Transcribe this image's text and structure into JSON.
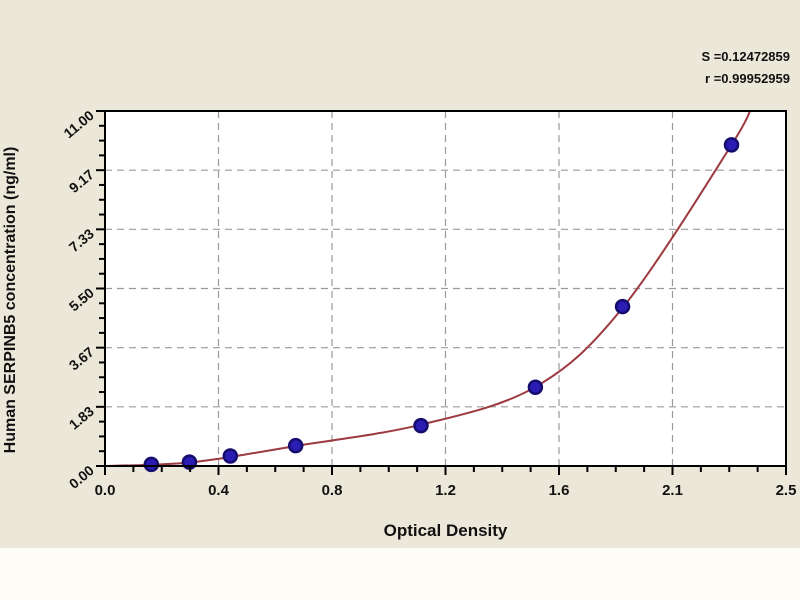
{
  "window": {
    "main_bg": "#ece8d9",
    "bottom_strip_bg": "#fdfdf6",
    "plot_bg": "#ffffff",
    "plot_border_color": "#000000",
    "grid_color": "#9a9a9a",
    "text_color": "#111111"
  },
  "stats": {
    "s_line": "S =0.12472859",
    "r_line": "r =0.99952959"
  },
  "chart_data": {
    "type": "scatter",
    "title": "",
    "xlabel": "Optical Density",
    "ylabel": "Human SERPINB5 concentration (ng/ml)",
    "xlim": [
      0,
      2.5
    ],
    "ylim": [
      0,
      11
    ],
    "x_tick_labels": [
      "0.0",
      "0.4",
      "0.8",
      "1.2",
      "1.6",
      "2.1",
      "2.5"
    ],
    "y_tick_labels": [
      "0.00",
      "1.83",
      "3.67",
      "5.50",
      "7.33",
      "9.17",
      "11.00"
    ],
    "grid": "dashed-on-major",
    "minor_ticks_between_major": 3,
    "legend": "none",
    "fit_stats": {
      "S": "0.12472859",
      "r": "0.99952959"
    },
    "series": [
      {
        "name": "standard-points",
        "type": "scatter",
        "marker": "circle",
        "marker_color": "#2b1cb4",
        "marker_edge_color": "#150d6e",
        "x": [
          0.17,
          0.31,
          0.46,
          0.7,
          1.16,
          1.58,
          1.9,
          2.3
        ],
        "y": [
          0.05,
          0.12,
          0.31,
          0.63,
          1.25,
          2.44,
          4.94,
          9.95
        ]
      },
      {
        "name": "fit-curve",
        "type": "line",
        "color": "#9c3a3f",
        "x": [
          0.0,
          0.17,
          0.31,
          0.46,
          0.7,
          1.16,
          1.58,
          1.9,
          2.3,
          2.38
        ],
        "y": [
          0.0,
          0.04,
          0.11,
          0.28,
          0.62,
          1.28,
          2.45,
          4.9,
          9.95,
          11.3
        ]
      }
    ]
  }
}
